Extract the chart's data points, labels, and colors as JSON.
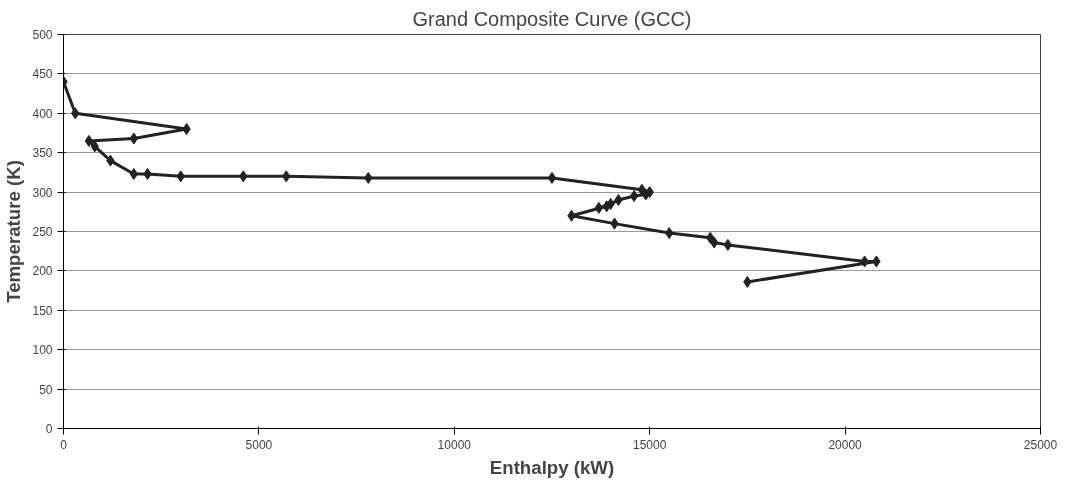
{
  "chart_data": {
    "type": "line",
    "title": "Grand Composite Curve (GCC)",
    "xlabel": "Enthalpy (kW)",
    "ylabel": "Temperature (K)",
    "series": [
      {
        "color": "#222222",
        "x": [
          0,
          300,
          3150,
          1800,
          650,
          800,
          1200,
          1800,
          2150,
          3000,
          4600,
          5700,
          7800,
          12500,
          14800,
          15000,
          14900,
          14600,
          14200,
          14000,
          13700,
          13900,
          13000,
          14100,
          15500,
          16550,
          16650,
          17000,
          20500,
          20800,
          17500
        ],
        "values": [
          440,
          400,
          380,
          368,
          365,
          358,
          340,
          323,
          323,
          320,
          320,
          320,
          318,
          318,
          303,
          300,
          297,
          295,
          290,
          285,
          280,
          282,
          270,
          260,
          248,
          242,
          236,
          233,
          212,
          212,
          186
        ]
      }
    ],
    "xlim": [
      0,
      25000
    ],
    "xticks": [
      0,
      5000,
      10000,
      15000,
      20000,
      25000
    ],
    "ylim": [
      0,
      500
    ],
    "yticks": [
      0,
      50,
      100,
      150,
      200,
      250,
      300,
      350,
      400,
      450,
      500
    ],
    "grid": "y",
    "marker": "diamond",
    "line_style": "solid"
  }
}
